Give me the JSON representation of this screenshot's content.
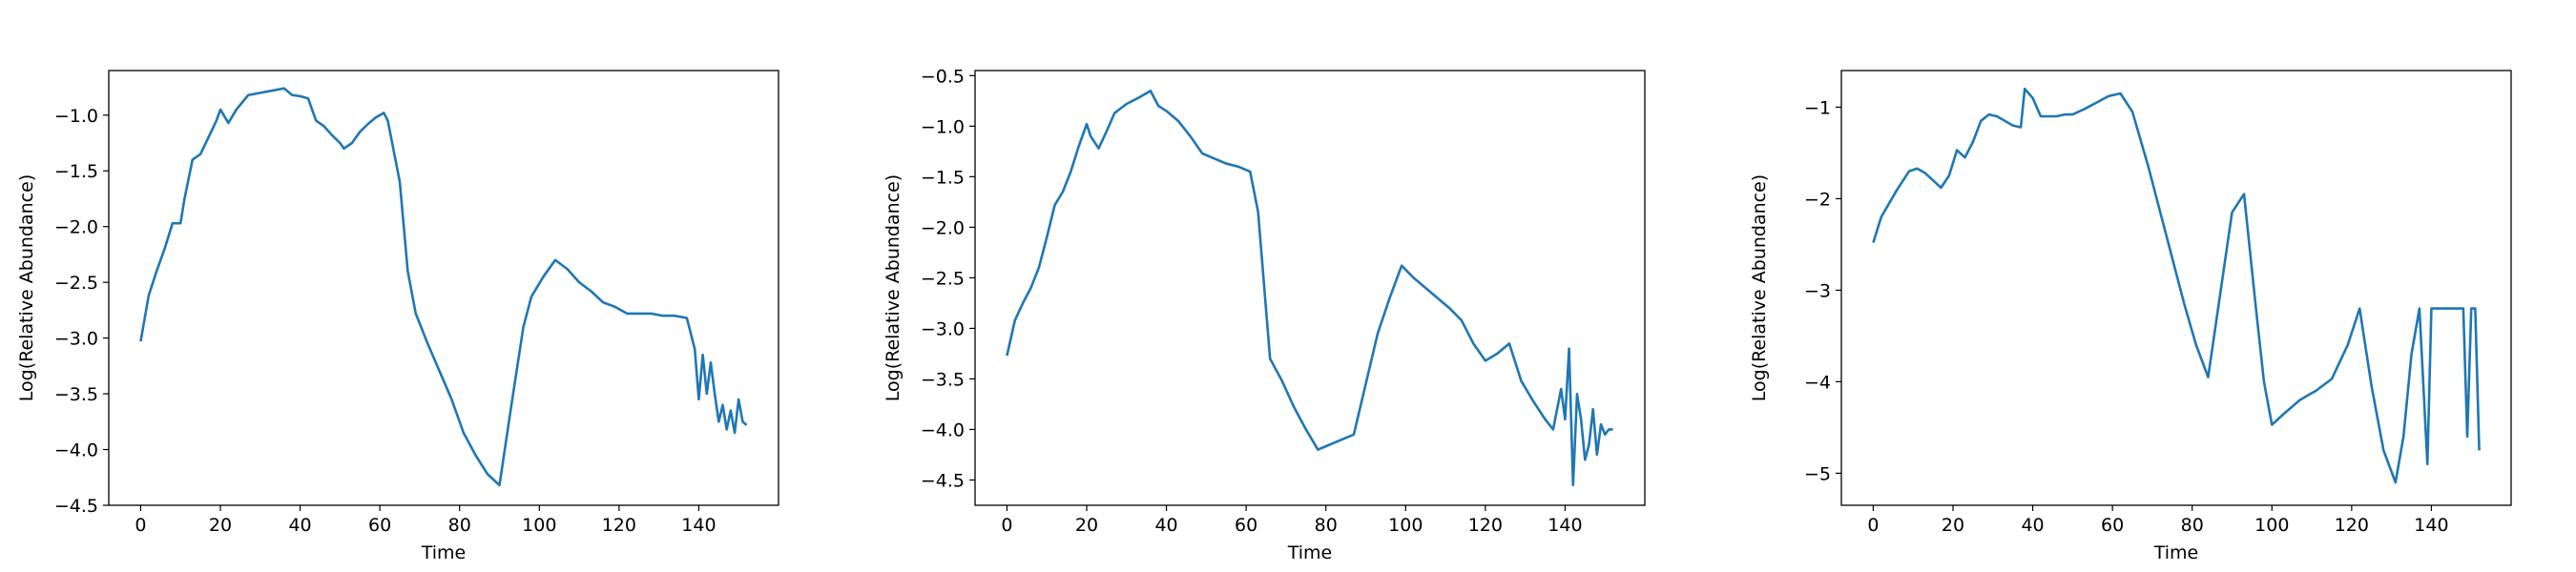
{
  "chart_data": [
    {
      "type": "line",
      "xlabel": "Time",
      "ylabel": "Log(Relative Abundance)",
      "xlim": [
        -8,
        160
      ],
      "ylim": [
        -4.5,
        -0.6
      ],
      "xticks": [
        0,
        20,
        40,
        60,
        80,
        100,
        120,
        140
      ],
      "yticks": [
        -4.5,
        -4.0,
        -3.5,
        -3.0,
        -2.5,
        -2.0,
        -1.5,
        -1.0
      ],
      "ytick_format": 1,
      "grid": false,
      "color": "#1f77b4",
      "series": [
        {
          "x": [
            0,
            2,
            4,
            6,
            8,
            10,
            11,
            13,
            15,
            17,
            19,
            20,
            22,
            24,
            27,
            30,
            33,
            36,
            38,
            40,
            42,
            44,
            46,
            48,
            50,
            51,
            53,
            55,
            57,
            59,
            61,
            62,
            65,
            67,
            69,
            72,
            75,
            78,
            81,
            84,
            87,
            90,
            93,
            96,
            98,
            101,
            104,
            107,
            110,
            113,
            116,
            119,
            122,
            125,
            128,
            131,
            134,
            137,
            139,
            140,
            141,
            142,
            143,
            144,
            145,
            146,
            147,
            148,
            149,
            150,
            151,
            152
          ],
          "y": [
            -3.03,
            -2.62,
            -2.4,
            -2.2,
            -1.97,
            -1.97,
            -1.75,
            -1.4,
            -1.35,
            -1.2,
            -1.05,
            -0.95,
            -1.07,
            -0.95,
            -0.82,
            -0.8,
            -0.78,
            -0.76,
            -0.82,
            -0.83,
            -0.85,
            -1.05,
            -1.1,
            -1.18,
            -1.25,
            -1.3,
            -1.25,
            -1.15,
            -1.08,
            -1.02,
            -0.98,
            -1.05,
            -1.6,
            -2.4,
            -2.78,
            -3.05,
            -3.3,
            -3.55,
            -3.85,
            -4.05,
            -4.22,
            -4.32,
            -3.6,
            -2.9,
            -2.63,
            -2.45,
            -2.3,
            -2.38,
            -2.5,
            -2.58,
            -2.68,
            -2.72,
            -2.78,
            -2.78,
            -2.78,
            -2.8,
            -2.8,
            -2.82,
            -3.1,
            -3.55,
            -3.15,
            -3.5,
            -3.22,
            -3.5,
            -3.75,
            -3.6,
            -3.82,
            -3.65,
            -3.85,
            -3.55,
            -3.75,
            -3.78
          ]
        }
      ]
    },
    {
      "type": "line",
      "xlabel": "Time",
      "ylabel": "Log(Relative Abundance)",
      "xlim": [
        -8,
        160
      ],
      "ylim": [
        -4.75,
        -0.45
      ],
      "xticks": [
        0,
        20,
        40,
        60,
        80,
        100,
        120,
        140
      ],
      "yticks": [
        -4.5,
        -4.0,
        -3.5,
        -3.0,
        -2.5,
        -2.0,
        -1.5,
        -1.0,
        -0.5
      ],
      "ytick_format": 1,
      "grid": false,
      "color": "#1f77b4",
      "series": [
        {
          "x": [
            0,
            2,
            4,
            6,
            8,
            10,
            12,
            14,
            16,
            18,
            20,
            21,
            23,
            25,
            27,
            30,
            33,
            36,
            38,
            40,
            43,
            46,
            49,
            52,
            55,
            58,
            61,
            63,
            66,
            69,
            72,
            75,
            78,
            81,
            84,
            87,
            90,
            93,
            96,
            99,
            102,
            105,
            108,
            111,
            114,
            117,
            120,
            123,
            126,
            129,
            132,
            135,
            137,
            139,
            140,
            141,
            142,
            143,
            144,
            145,
            146,
            147,
            148,
            149,
            150,
            151,
            152
          ],
          "y": [
            -3.27,
            -2.92,
            -2.75,
            -2.6,
            -2.4,
            -2.1,
            -1.78,
            -1.65,
            -1.45,
            -1.2,
            -0.98,
            -1.1,
            -1.22,
            -1.05,
            -0.87,
            -0.78,
            -0.72,
            -0.65,
            -0.8,
            -0.85,
            -0.95,
            -1.1,
            -1.27,
            -1.32,
            -1.37,
            -1.4,
            -1.45,
            -1.85,
            -3.3,
            -3.52,
            -3.78,
            -4.0,
            -4.2,
            -4.15,
            -4.1,
            -4.05,
            -3.55,
            -3.05,
            -2.7,
            -2.38,
            -2.5,
            -2.6,
            -2.7,
            -2.8,
            -2.92,
            -3.15,
            -3.32,
            -3.25,
            -3.15,
            -3.52,
            -3.72,
            -3.9,
            -4.0,
            -3.6,
            -3.9,
            -3.2,
            -4.55,
            -3.65,
            -3.9,
            -4.3,
            -4.15,
            -3.8,
            -4.25,
            -3.95,
            -4.05,
            -4.0,
            -4.0
          ]
        }
      ]
    },
    {
      "type": "line",
      "xlabel": "Time",
      "ylabel": "Log(Relative Abundance)",
      "xlim": [
        -8,
        160
      ],
      "ylim": [
        -5.35,
        -0.6
      ],
      "xticks": [
        0,
        20,
        40,
        60,
        80,
        100,
        120,
        140
      ],
      "yticks": [
        -5,
        -4,
        -3,
        -2,
        -1
      ],
      "ytick_format": 0,
      "grid": false,
      "color": "#1f77b4",
      "series": [
        {
          "x": [
            0,
            2,
            4,
            6,
            9,
            11,
            13,
            15,
            17,
            19,
            21,
            23,
            25,
            27,
            29,
            31,
            33,
            35,
            37,
            38,
            40,
            42,
            44,
            46,
            48,
            50,
            53,
            56,
            59,
            62,
            65,
            67,
            69,
            72,
            75,
            78,
            81,
            84,
            87,
            90,
            93,
            96,
            98,
            100,
            103,
            107,
            111,
            115,
            119,
            122,
            125,
            128,
            131,
            133,
            135,
            137,
            139,
            140,
            141,
            142,
            144,
            146,
            148,
            149,
            150,
            151,
            152
          ],
          "y": [
            -2.48,
            -2.2,
            -2.05,
            -1.9,
            -1.7,
            -1.67,
            -1.72,
            -1.8,
            -1.88,
            -1.75,
            -1.47,
            -1.55,
            -1.38,
            -1.15,
            -1.08,
            -1.1,
            -1.15,
            -1.2,
            -1.22,
            -0.8,
            -0.9,
            -1.1,
            -1.1,
            -1.1,
            -1.08,
            -1.08,
            -1.02,
            -0.95,
            -0.88,
            -0.85,
            -1.05,
            -1.35,
            -1.65,
            -2.15,
            -2.65,
            -3.15,
            -3.6,
            -3.95,
            -3.05,
            -2.15,
            -1.95,
            -3.2,
            -4.0,
            -4.47,
            -4.35,
            -4.2,
            -4.1,
            -3.97,
            -3.6,
            -3.2,
            -4.05,
            -4.75,
            -5.1,
            -4.6,
            -3.7,
            -3.2,
            -4.9,
            -3.2,
            -3.2,
            -3.2,
            -3.2,
            -3.2,
            -3.2,
            -4.6,
            -3.2,
            -3.2,
            -4.75
          ]
        }
      ]
    }
  ]
}
